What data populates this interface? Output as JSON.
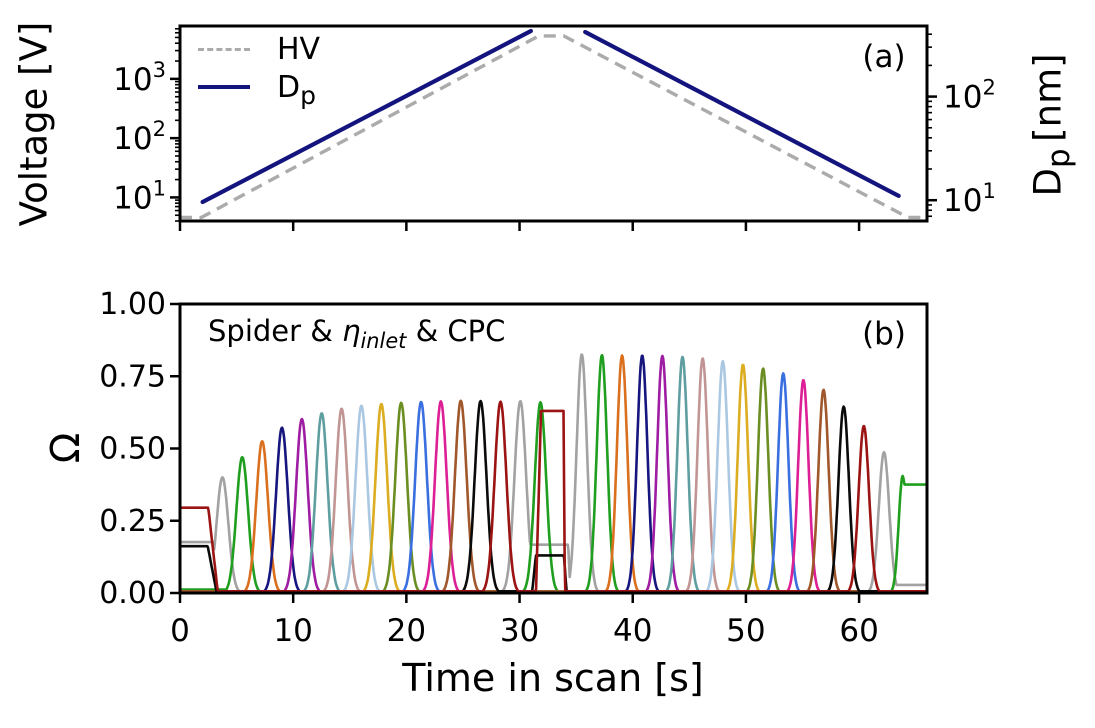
{
  "chart_data": [
    {
      "type": "line",
      "panel": "a",
      "panel_label": "(a)",
      "xlim": [
        0,
        66
      ],
      "xticks": [
        0,
        10,
        20,
        30,
        40,
        50,
        60
      ],
      "grid": false,
      "left_axis": {
        "label": "Voltage [V]",
        "scale": "log",
        "lim": [
          4,
          7800
        ],
        "tick_exponents": [
          1,
          2,
          3
        ],
        "tick_base": "10"
      },
      "right_axis": {
        "label": "Dp [nm]",
        "label_main": "D",
        "label_sub": "p",
        "label_unit": "[nm]",
        "scale": "log",
        "lim": [
          6.3,
          480
        ],
        "tick_exponents": [
          1,
          2
        ],
        "tick_base": "10"
      },
      "legend": [
        {
          "label": "HV",
          "line": "dashed",
          "color": "#ababab"
        },
        {
          "label": "Dp",
          "label_main": "D",
          "label_sub": "p",
          "line": "solid",
          "color": "#14147e"
        }
      ],
      "series": [
        {
          "name": "HV",
          "axis": "left",
          "color": "#ababab",
          "style": "dashed",
          "width": 3.4,
          "anchors_t_V": [
            [
              0,
              4.6
            ],
            [
              1.9,
              4.6
            ],
            [
              31.7,
              5300
            ],
            [
              33.9,
              5300
            ],
            [
              64.3,
              4.6
            ],
            [
              66,
              4.6
            ]
          ]
        },
        {
          "name": "Dp",
          "axis": "right",
          "color": "#14147e",
          "style": "solid",
          "width": 4.2,
          "segments_t_nm": [
            [
              [
                2.0,
                9.6
              ],
              [
                31.0,
                430
              ]
            ],
            [
              [
                35.8,
                420
              ],
              [
                63.5,
                11
              ]
            ]
          ]
        }
      ]
    },
    {
      "type": "line",
      "panel": "b",
      "panel_label": "(b)",
      "annotation": {
        "text": "Spider & η_inlet & CPC",
        "prefix": "Spider & ",
        "eta": "η",
        "eta_sub": "inlet",
        "suffix": " & CPC"
      },
      "xlabel": "Time in scan [s]",
      "ylabel": "Ω",
      "xlim": [
        0,
        66
      ],
      "xticks": [
        0,
        10,
        20,
        30,
        40,
        50,
        60
      ],
      "xtick_labels": [
        "0",
        "10",
        "20",
        "30",
        "40",
        "50",
        "60"
      ],
      "ylim": [
        0,
        1
      ],
      "yticks": [
        0,
        0.25,
        0.5,
        0.75,
        1.0
      ],
      "ytick_labels": [
        "0.00",
        "0.25",
        "0.50",
        "0.75",
        "1.00"
      ],
      "color_cycle": [
        "#a2a2a2",
        "#1f9e1f",
        "#da6f1e",
        "#16167e",
        "#9e1da2",
        "#5f9ea0",
        "#c29595",
        "#abc8e2",
        "#dcad20",
        "#6b8e23",
        "#3a6fe0",
        "#dd1f96",
        "#a0572b",
        "#0a0a0a",
        "#9b1313"
      ],
      "line_width": 2.6,
      "baseline": 0.006,
      "traces": [
        {
          "color": 0,
          "name": "bin-gray",
          "gauss": [
            [
              3.75,
              0.4,
              0.52
            ],
            [
              30.07,
              0.664,
              0.52
            ],
            [
              35.5,
              0.826,
              0.46
            ],
            [
              62.2,
              0.487,
              0.46
            ]
          ],
          "boxes": [
            [
              -1,
              3.02,
              0.176,
              0,
              0
            ],
            [
              30.82,
              34.3,
              0.167,
              0,
              0.18
            ],
            [
              63.05,
              66.3,
              0.028,
              0,
              0
            ]
          ]
        },
        {
          "color": 1,
          "name": "bin-green",
          "gauss": [
            [
              5.5,
              0.47,
              0.52
            ],
            [
              31.85,
              0.66,
              0.5
            ],
            [
              37.28,
              0.823,
              0.46
            ],
            [
              63.85,
              0.405,
              0.35
            ]
          ],
          "boxes": [
            [
              -1,
              4.3,
              0.012,
              0,
              0
            ],
            [
              63.99,
              66.3,
              0.375,
              0,
              0
            ]
          ]
        },
        {
          "color": 2,
          "name": "bin-orange",
          "gauss": [
            [
              7.26,
              0.525,
              0.52
            ],
            [
              39.06,
              0.822,
              0.46
            ]
          ],
          "boxes": []
        },
        {
          "color": 3,
          "name": "bin-navy",
          "gauss": [
            [
              9.01,
              0.572,
              0.52
            ],
            [
              40.84,
              0.822,
              0.46
            ]
          ],
          "boxes": []
        },
        {
          "color": 4,
          "name": "bin-purple",
          "gauss": [
            [
              10.77,
              0.602,
              0.52
            ],
            [
              42.62,
              0.82,
              0.46
            ]
          ],
          "boxes": []
        },
        {
          "color": 5,
          "name": "bin-cadetblue",
          "gauss": [
            [
              12.52,
              0.622,
              0.52
            ],
            [
              44.4,
              0.817,
              0.46
            ]
          ],
          "boxes": []
        },
        {
          "color": 6,
          "name": "bin-rosybrown",
          "gauss": [
            [
              14.28,
              0.638,
              0.52
            ],
            [
              46.18,
              0.812,
              0.46
            ]
          ],
          "boxes": []
        },
        {
          "color": 7,
          "name": "bin-lightsteel",
          "gauss": [
            [
              16.03,
              0.648,
              0.52
            ],
            [
              47.96,
              0.802,
              0.46
            ]
          ],
          "boxes": []
        },
        {
          "color": 8,
          "name": "bin-goldenrod",
          "gauss": [
            [
              17.79,
              0.654,
              0.52
            ],
            [
              49.74,
              0.79,
              0.46
            ]
          ],
          "boxes": []
        },
        {
          "color": 9,
          "name": "bin-olivedrab",
          "gauss": [
            [
              19.54,
              0.658,
              0.52
            ],
            [
              51.52,
              0.777,
              0.46
            ]
          ],
          "boxes": []
        },
        {
          "color": 10,
          "name": "bin-royalblue",
          "gauss": [
            [
              21.3,
              0.661,
              0.52
            ],
            [
              53.3,
              0.76,
              0.46
            ]
          ],
          "boxes": []
        },
        {
          "color": 11,
          "name": "bin-violetred",
          "gauss": [
            [
              23.05,
              0.663,
              0.52
            ],
            [
              55.08,
              0.737,
              0.46
            ]
          ],
          "boxes": []
        },
        {
          "color": 12,
          "name": "bin-sienna",
          "gauss": [
            [
              24.81,
              0.665,
              0.52
            ],
            [
              56.86,
              0.703,
              0.46
            ]
          ],
          "boxes": []
        },
        {
          "color": 13,
          "name": "bin-black",
          "gauss": [
            [
              26.56,
              0.664,
              0.52
            ],
            [
              58.64,
              0.645,
              0.46
            ]
          ],
          "boxes": [
            [
              -1,
              2.45,
              0.162,
              0,
              0.8
            ],
            [
              31.45,
              33.92,
              0.13,
              0.35,
              0.25
            ]
          ]
        },
        {
          "color": 14,
          "name": "bin-darkred",
          "gauss": [
            [
              28.32,
              0.662,
              0.52
            ],
            [
              60.42,
              0.578,
              0.46
            ]
          ],
          "boxes": [
            [
              -1,
              2.5,
              0.295,
              0,
              0.85
            ],
            [
              31.9,
              33.88,
              0.63,
              0.45,
              0.13
            ]
          ]
        }
      ]
    }
  ]
}
